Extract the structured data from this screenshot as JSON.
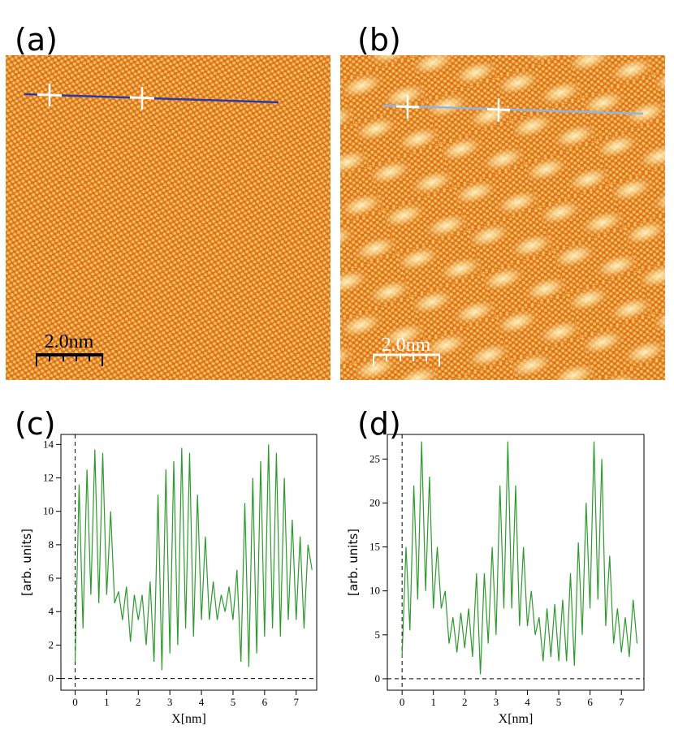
{
  "images": [
    {
      "label": "(a)",
      "scale_bar": "2.0nm"
    },
    {
      "label": "(b)",
      "scale_bar": "2.0nm"
    }
  ],
  "chart_data": [
    {
      "type": "line",
      "panel": "(c)",
      "x_label": "X[nm]",
      "y_label": "[arb. units]",
      "xlim": [
        -0.45,
        7.65
      ],
      "ylim": [
        -0.7,
        14.6
      ],
      "xticks": [
        0,
        1,
        2,
        3,
        4,
        5,
        6,
        7
      ],
      "yticks": [
        0,
        2,
        4,
        6,
        8,
        10,
        12,
        14
      ],
      "x": [
        0,
        0.125,
        0.25,
        0.375,
        0.5,
        0.625,
        0.75,
        0.875,
        1,
        1.125,
        1.25,
        1.375,
        1.5,
        1.625,
        1.75,
        1.875,
        2,
        2.125,
        2.25,
        2.375,
        2.5,
        2.625,
        2.75,
        2.875,
        3,
        3.125,
        3.25,
        3.375,
        3.5,
        3.625,
        3.75,
        3.875,
        4,
        4.125,
        4.25,
        4.375,
        4.5,
        4.625,
        4.75,
        4.875,
        5,
        5.125,
        5.25,
        5.375,
        5.5,
        5.625,
        5.75,
        5.875,
        6,
        6.125,
        6.25,
        6.375,
        6.5,
        6.625,
        6.75,
        6.875,
        7,
        7.125,
        7.25,
        7.375,
        7.5
      ],
      "series": [
        {
          "color": "#2e9a2e",
          "values": [
            1,
            11.6,
            3,
            12.5,
            5,
            13.7,
            4.5,
            13.5,
            5,
            10,
            4.5,
            5.2,
            3.5,
            5.5,
            2.2,
            5,
            3.5,
            5,
            2,
            5.8,
            1,
            11,
            0.5,
            12.5,
            1.5,
            13,
            2,
            13.8,
            3,
            13.5,
            2.5,
            11,
            3.5,
            8.5,
            3.5,
            5.8,
            3.5,
            5,
            4,
            5.5,
            3.5,
            6.5,
            1,
            10.5,
            0.7,
            12,
            1.5,
            13,
            2.5,
            14,
            3,
            13.5,
            2.5,
            12,
            3.5,
            9.5,
            3.5,
            8.5,
            3,
            8,
            6.5
          ]
        }
      ]
    },
    {
      "type": "line",
      "panel": "(d)",
      "x_label": "X[nm]",
      "y_label": "[arb. units]",
      "xlim": [
        -0.47,
        7.72
      ],
      "ylim": [
        -1.3,
        27.8
      ],
      "xticks": [
        0,
        1,
        2,
        3,
        4,
        5,
        6,
        7
      ],
      "yticks": [
        0,
        5,
        10,
        15,
        20,
        25
      ],
      "x": [
        0,
        0.125,
        0.25,
        0.375,
        0.5,
        0.625,
        0.75,
        0.875,
        1,
        1.125,
        1.25,
        1.375,
        1.5,
        1.625,
        1.75,
        1.875,
        2,
        2.125,
        2.25,
        2.375,
        2.5,
        2.625,
        2.75,
        2.875,
        3,
        3.125,
        3.25,
        3.375,
        3.5,
        3.625,
        3.75,
        3.875,
        4,
        4.125,
        4.25,
        4.375,
        4.5,
        4.625,
        4.75,
        4.875,
        5,
        5.125,
        5.25,
        5.375,
        5.5,
        5.625,
        5.75,
        5.875,
        6,
        6.125,
        6.25,
        6.375,
        6.5,
        6.625,
        6.75,
        6.875,
        7,
        7.125,
        7.25,
        7.375,
        7.5
      ],
      "series": [
        {
          "color": "#2e9a2e",
          "values": [
            2.5,
            15,
            5.5,
            22,
            9,
            27,
            10,
            23,
            8,
            15,
            8,
            10,
            4,
            7,
            3,
            7.5,
            3.5,
            8,
            2.5,
            12,
            0.5,
            12,
            4,
            15,
            5,
            22,
            8,
            27,
            8,
            22,
            6,
            15,
            6,
            10,
            5,
            7,
            2,
            8,
            2.5,
            8.5,
            2,
            9,
            2,
            12,
            1.5,
            15.5,
            5,
            20,
            8,
            27,
            9,
            25,
            6,
            14,
            4,
            8,
            3,
            7,
            2.5,
            9,
            4
          ]
        }
      ]
    }
  ]
}
